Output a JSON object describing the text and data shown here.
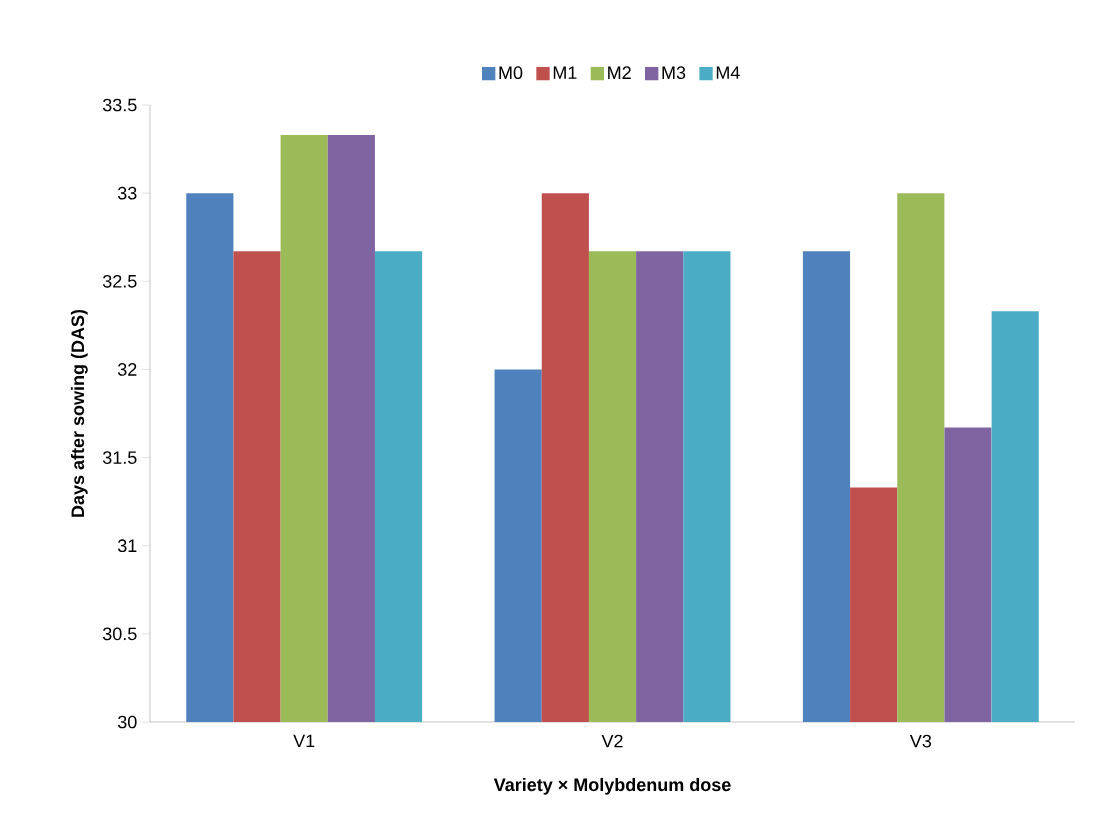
{
  "chart_data": {
    "type": "bar",
    "xlabel": "Variety × Molybdenum dose",
    "ylabel": "Days after sowing (DAS)",
    "categories": [
      "V1",
      "V2",
      "V3"
    ],
    "series": [
      {
        "name": "M0",
        "color": "#4f81bd",
        "values": [
          33,
          32,
          32.67
        ]
      },
      {
        "name": "M1",
        "color": "#c0504d",
        "values": [
          32.67,
          33,
          31.33
        ]
      },
      {
        "name": "M2",
        "color": "#9bbb59",
        "values": [
          33.33,
          32.67,
          33
        ]
      },
      {
        "name": "M3",
        "color": "#8064a2",
        "values": [
          33.33,
          32.67,
          31.67
        ]
      },
      {
        "name": "M4",
        "color": "#4bacc6",
        "values": [
          32.67,
          32.67,
          32.33
        ]
      }
    ],
    "ylim": [
      30,
      33.5
    ],
    "yticks": [
      30,
      30.5,
      31,
      31.5,
      32,
      32.5,
      33,
      33.5
    ],
    "grid": false,
    "legend": "top"
  }
}
